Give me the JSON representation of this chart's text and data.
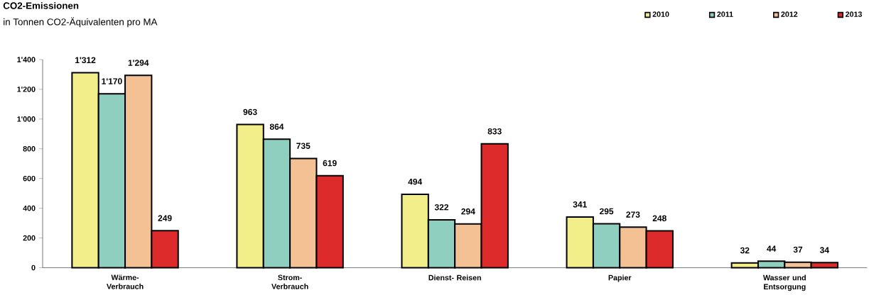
{
  "chart_data": {
    "type": "bar",
    "title": "CO2-Emissionen",
    "subtitle": "in Tonnen CO2-Äquivalenten pro MA",
    "categories": [
      "Wärme- Verbrauch",
      "Strom- Verbrauch",
      "Dienst- Reisen",
      "Papier",
      "Wasser und Entsorgung"
    ],
    "series": [
      {
        "name": "2010",
        "color": "#f2ee8a",
        "values": [
          1312,
          963,
          494,
          341,
          32
        ],
        "value_labels": [
          "1'312",
          "963",
          "494",
          "341",
          "32"
        ]
      },
      {
        "name": "2011",
        "color": "#8ecfc0",
        "values": [
          1170,
          864,
          322,
          295,
          44
        ],
        "value_labels": [
          "1'170",
          "864",
          "322",
          "295",
          "44"
        ]
      },
      {
        "name": "2012",
        "color": "#f4c195",
        "values": [
          1294,
          735,
          294,
          273,
          37
        ],
        "value_labels": [
          "1'294",
          "735",
          "294",
          "273",
          "37"
        ]
      },
      {
        "name": "2013",
        "color": "#dd2a2a",
        "values": [
          249,
          619,
          833,
          248,
          34
        ],
        "value_labels": [
          "249",
          "619",
          "833",
          "248",
          "34"
        ]
      }
    ],
    "ylim": [
      0,
      1400
    ],
    "yticks": [
      0,
      200,
      400,
      600,
      800,
      {
        "value": 1000,
        "label": "1'000"
      },
      {
        "value": 1200,
        "label": "1'200"
      },
      {
        "value": 1400,
        "label": "1'400"
      }
    ],
    "grid": false,
    "legend": "top right"
  }
}
